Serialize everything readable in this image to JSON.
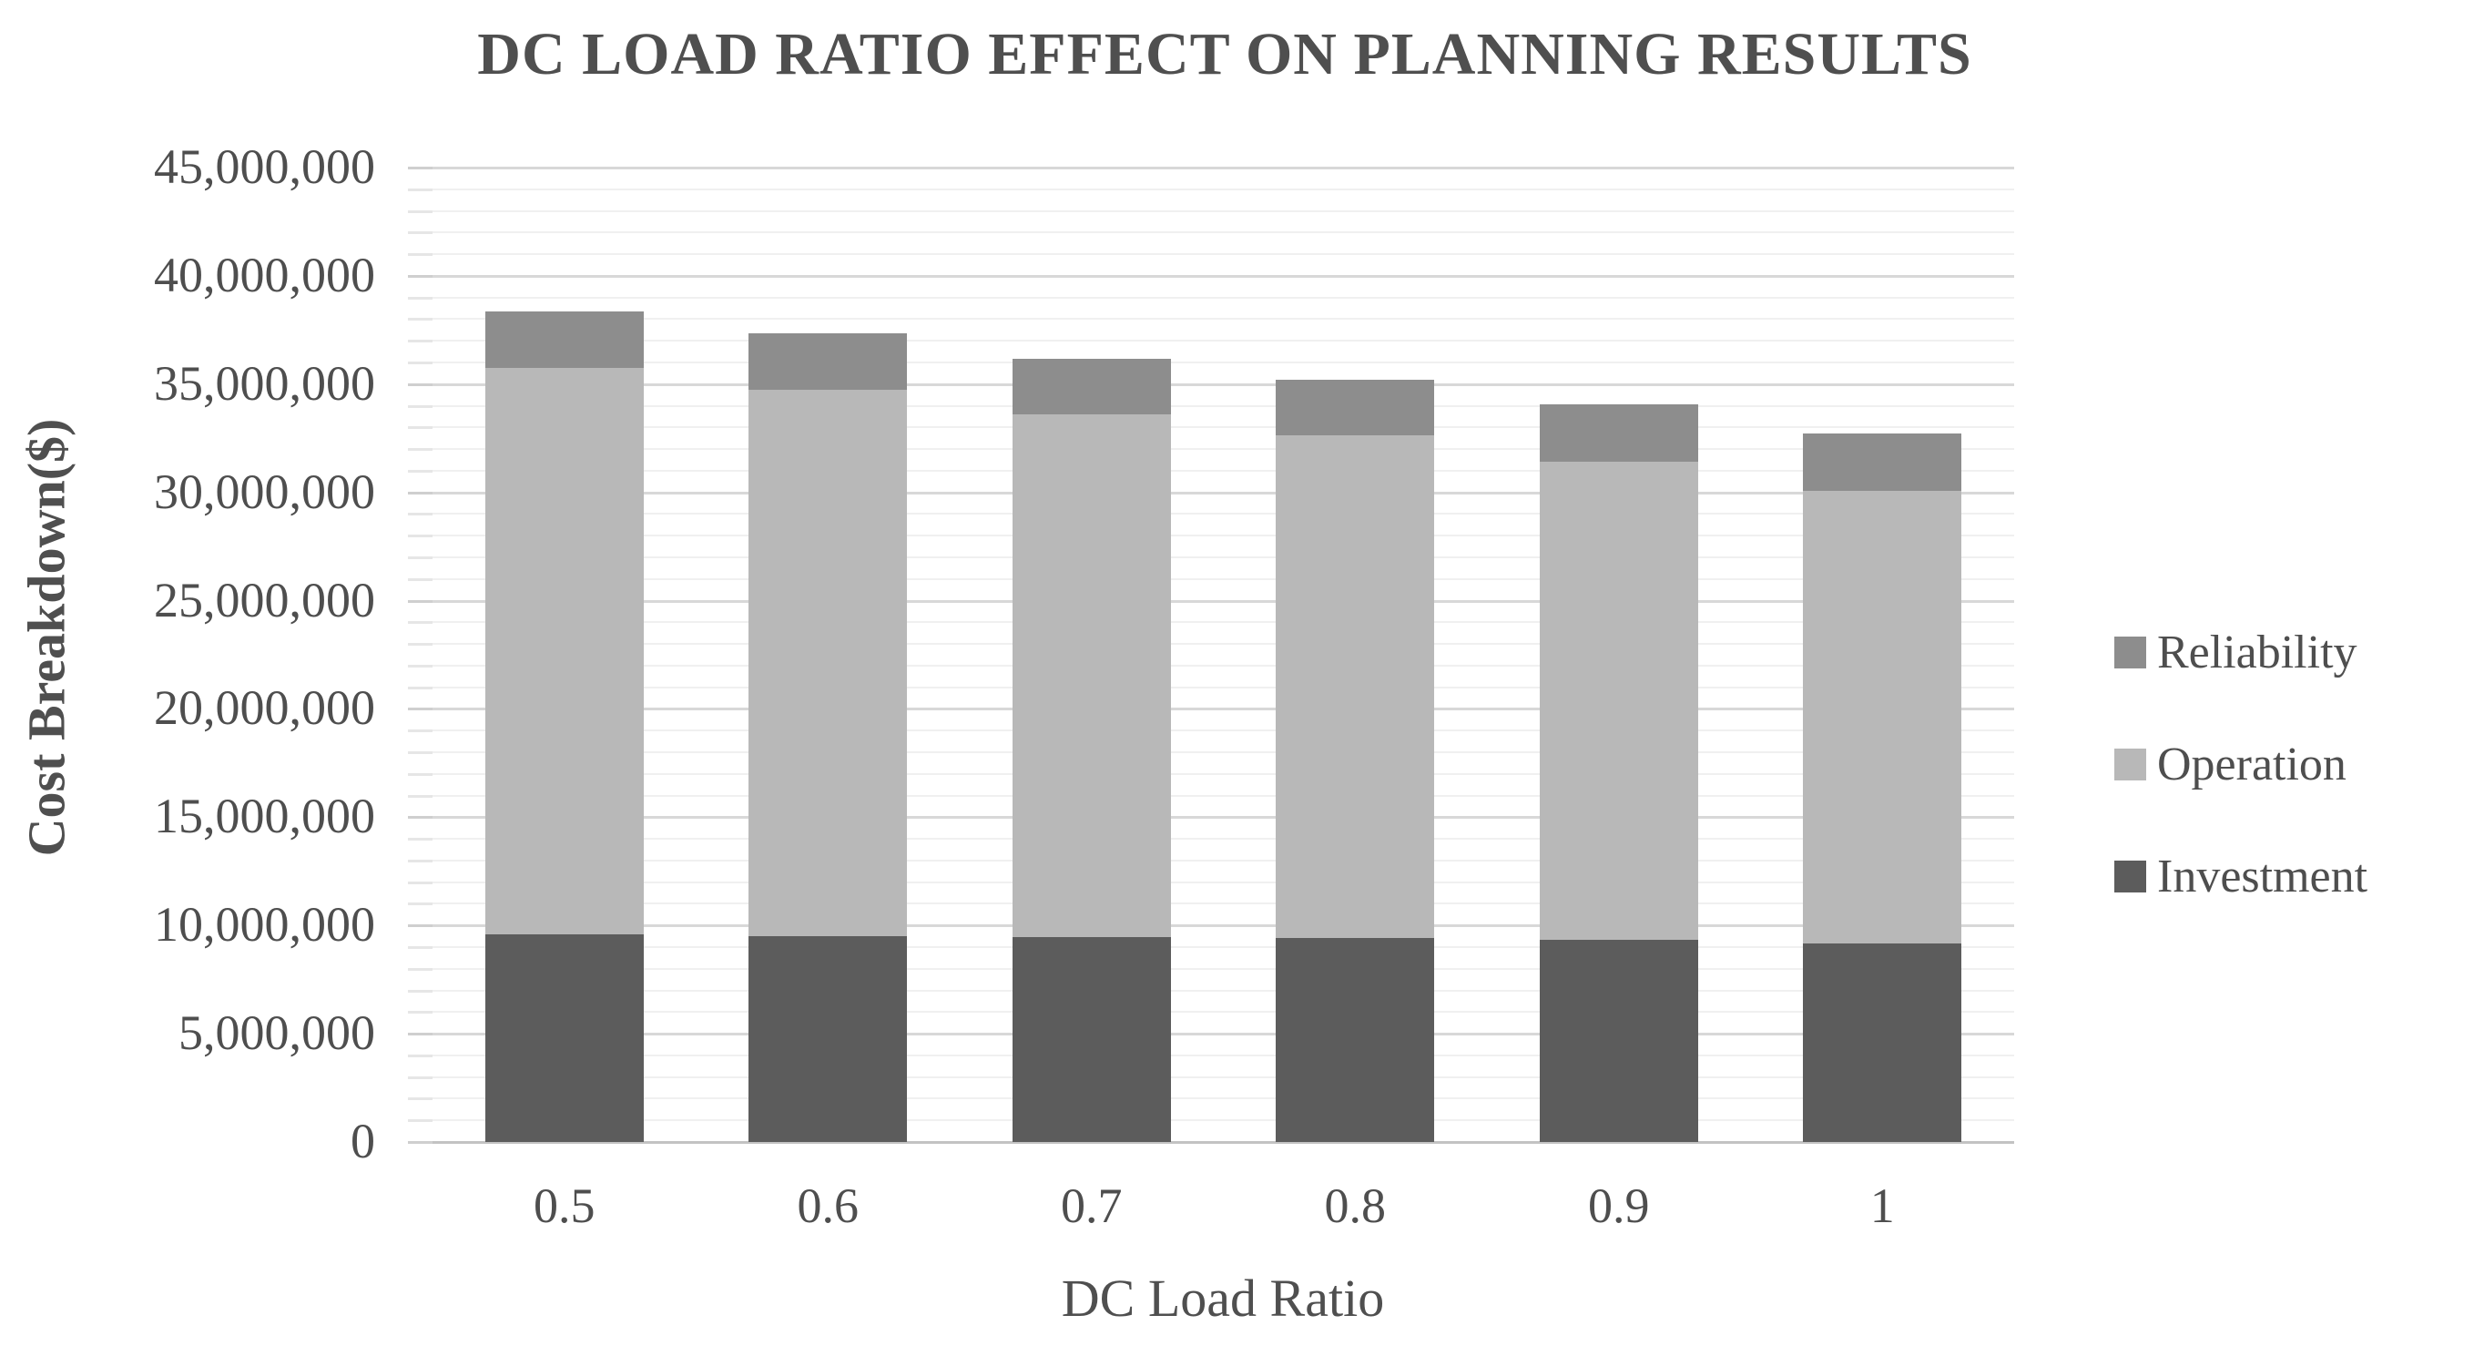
{
  "title": "DC LOAD RATIO EFFECT ON PLANNING RESULTS",
  "axes": {
    "x_title": "DC Load Ratio",
    "y_title": "Cost Breakdown($)"
  },
  "legend": {
    "position": "right",
    "items": [
      {
        "label": "Reliability",
        "color": "#8d8d8d"
      },
      {
        "label": "Operation",
        "color": "#b8b8b8"
      },
      {
        "label": "Investment",
        "color": "#5c5c5c"
      }
    ]
  },
  "chart_data": {
    "type": "bar",
    "stacked": true,
    "title": "DC LOAD RATIO EFFECT ON PLANNING RESULTS",
    "xlabel": "DC Load Ratio",
    "ylabel": "Cost Breakdown($)",
    "categories": [
      "0.5",
      "0.6",
      "0.7",
      "0.8",
      "0.9",
      "1"
    ],
    "series": [
      {
        "name": "Investment",
        "color": "#5c5c5c",
        "values": [
          9600000,
          9500000,
          9450000,
          9400000,
          9350000,
          9150000
        ]
      },
      {
        "name": "Operation",
        "color": "#b8b8b8",
        "values": [
          26150000,
          25250000,
          24150000,
          23250000,
          22050000,
          20900000
        ]
      },
      {
        "name": "Reliability",
        "color": "#8d8d8d",
        "values": [
          2600000,
          2600000,
          2550000,
          2550000,
          2650000,
          2650000
        ]
      }
    ],
    "ylim": [
      0,
      45000000
    ],
    "ytick_interval": 5000000,
    "yminor_interval": 1000000,
    "ytick_labels": [
      "0",
      "5,000,000",
      "10,000,000",
      "15,000,000",
      "20,000,000",
      "25,000,000",
      "30,000,000",
      "35,000,000",
      "40,000,000",
      "45,000,000"
    ],
    "grid": "on",
    "legend_position": "right",
    "legend_order": [
      "Reliability",
      "Operation",
      "Investment"
    ],
    "colors": {
      "text": "#4e4e4e",
      "grid_major": "#d8d8d8",
      "grid_minor": "#f0f0f0",
      "baseline": "#c3c3c3"
    }
  }
}
